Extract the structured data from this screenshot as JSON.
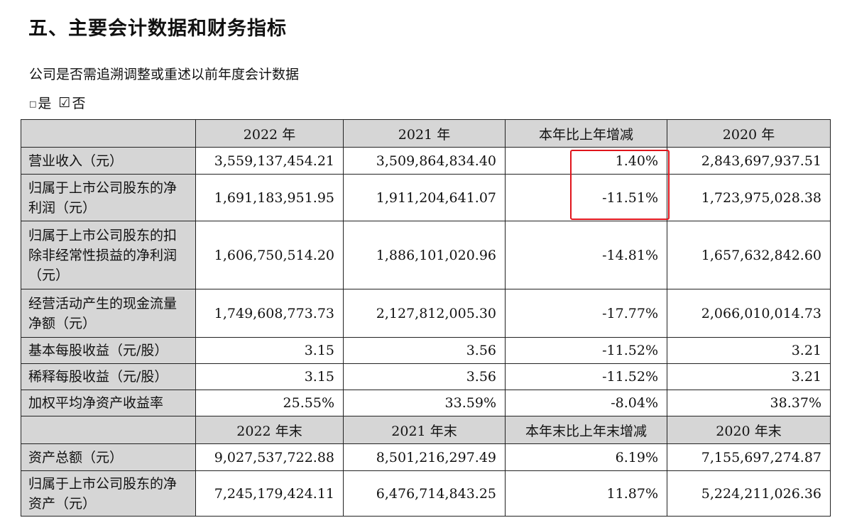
{
  "section_title": "五、主要会计数据和财务指标",
  "question": "公司是否需追溯调整或重述以前年度会计数据",
  "options": {
    "yes_box": "□",
    "yes_label": "是",
    "no_box": "☑",
    "no_label": "否"
  },
  "table": {
    "header1": [
      "2022 年",
      "2021 年",
      "本年比上年增减",
      "2020 年"
    ],
    "header2": [
      "2022 年末",
      "2021 年末",
      "本年末比上年末增减",
      "2020 年末"
    ],
    "rows": [
      {
        "label": "营业收入（元）",
        "values": [
          "3,559,137,454.21",
          "3,509,864,834.40",
          "1.40%",
          "2,843,697,937.51"
        ]
      },
      {
        "label": "归属于上市公司股东的净利润（元）",
        "values": [
          "1,691,183,951.95",
          "1,911,204,641.07",
          "-11.51%",
          "1,723,975,028.38"
        ]
      },
      {
        "label": "归属于上市公司股东的扣除非经常性损益的净利润（元）",
        "values": [
          "1,606,750,514.20",
          "1,886,101,020.96",
          "-14.81%",
          "1,657,632,842.60"
        ]
      },
      {
        "label": "经营活动产生的现金流量净额（元）",
        "values": [
          "1,749,608,773.73",
          "2,127,812,005.30",
          "-17.77%",
          "2,066,010,014.73"
        ]
      },
      {
        "label": "基本每股收益（元/股）",
        "values": [
          "3.15",
          "3.56",
          "-11.52%",
          "3.21"
        ]
      },
      {
        "label": "稀释每股收益（元/股）",
        "values": [
          "3.15",
          "3.56",
          "-11.52%",
          "3.21"
        ]
      },
      {
        "label": "加权平均净资产收益率",
        "values": [
          "25.55%",
          "33.59%",
          "-8.04%",
          "38.37%"
        ]
      }
    ],
    "rows2": [
      {
        "label": "资产总额（元）",
        "values": [
          "9,027,537,722.88",
          "8,501,216,297.49",
          "6.19%",
          "7,155,697,274.87"
        ]
      },
      {
        "label": "归属于上市公司股东的净资产（元）",
        "values": [
          "7,245,179,424.11",
          "6,476,714,843.25",
          "11.87%",
          "5,224,211,026.36"
        ]
      }
    ]
  },
  "highlight_color": "#e0141b"
}
